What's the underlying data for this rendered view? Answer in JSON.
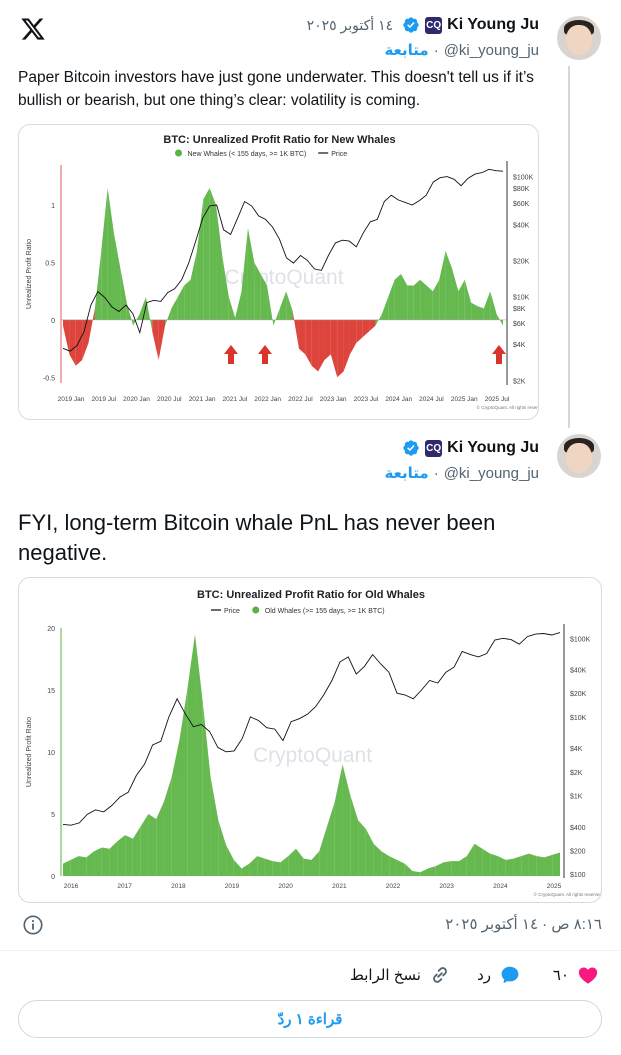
{
  "tweet1": {
    "name": "Ki Young Ju",
    "handle": "@ki_young_ju",
    "follow": "متابعة",
    "date": "١٤ أكتوبر ٢٠٢٥",
    "dot": "·",
    "text": "Paper Bitcoin investors have just gone underwater. This doesn't tell us if it’s bullish or bearish, but one thing’s clear: volatility is coming."
  },
  "tweet2": {
    "name": "Ki Young Ju",
    "handle": "@ki_young_ju",
    "follow": "متابعة",
    "dot": "·",
    "text": "FYI, long-term Bitcoin whale PnL has never been negative."
  },
  "badge_label": "CQ",
  "meta": {
    "timestamp": "٨:١٦ ص · ١٤ أكتوبر ٢٠٢٥"
  },
  "actions": {
    "like_count": "٦٠",
    "reply_label": "رد",
    "copy_link_label": "نسخ الرابط"
  },
  "read_replies_label": "قراءة ١ ردّ",
  "colors": {
    "accent": "#1d9bf0",
    "like": "#f91880",
    "green_series": "#59b340",
    "red_series": "#d9342b",
    "price_line": "#111111"
  },
  "chart_data": [
    {
      "type": "area",
      "title": "BTC: Unrealized Profit Ratio for New Whales",
      "legend": [
        "New Whales (< 155 days, >= 1K BTC)",
        "Price"
      ],
      "ylabel": "Unrealized Profit Ratio",
      "watermark": "CryptoQuant",
      "footnote": "© CryptoQuant. All rights reserved",
      "x_ticks": [
        "2019 Jan",
        "2019 Jul",
        "2020 Jan",
        "2020 Jul",
        "2021 Jan",
        "2021 Jul",
        "2022 Jan",
        "2022 Jul",
        "2023 Jan",
        "2023 Jul",
        "2024 Jan",
        "2024 Jul",
        "2025 Jan",
        "2025 Jul"
      ],
      "y_ticks": [
        "1",
        "0.5",
        "0",
        "-0.5"
      ],
      "ylim": [
        -0.55,
        1.35
      ],
      "y2_ticks": [
        "$100K",
        "$80K",
        "$60K",
        "$40K",
        "$20K",
        "$10K",
        "$8K",
        "$6K",
        "$4K",
        "$2K"
      ],
      "ratio": [
        -0.05,
        -0.3,
        -0.4,
        -0.35,
        -0.2,
        0.1,
        0.6,
        1.15,
        0.75,
        0.45,
        0.15,
        -0.05,
        0.05,
        0.2,
        -0.1,
        -0.35,
        -0.05,
        0.1,
        0.2,
        0.3,
        0.35,
        0.6,
        1.05,
        1.15,
        1.0,
        0.55,
        0.2,
        0.02,
        0.25,
        0.8,
        0.5,
        0.4,
        0.3,
        -0.05,
        0.1,
        0.25,
        0.08,
        -0.25,
        -0.3,
        -0.4,
        -0.45,
        -0.35,
        -0.3,
        -0.5,
        -0.45,
        -0.3,
        -0.2,
        -0.15,
        -0.1,
        -0.05,
        0.05,
        0.2,
        0.35,
        0.4,
        0.3,
        0.3,
        0.35,
        0.3,
        0.25,
        0.35,
        0.6,
        0.45,
        0.25,
        0.35,
        0.15,
        0.12,
        0.1,
        0.25,
        0.05,
        -0.05
      ],
      "price": [
        3.7,
        3.5,
        3.9,
        5.1,
        8.5,
        11.0,
        9.8,
        8.2,
        7.5,
        8.5,
        7.2,
        5.0,
        8.9,
        9.3,
        9.1,
        10.8,
        11.6,
        13.8,
        19.0,
        29.0,
        45.0,
        57.0,
        58.0,
        36.0,
        33.0,
        45.0,
        62.0,
        57.0,
        47.0,
        44.0,
        38.0,
        30.0,
        21.0,
        19.0,
        22.0,
        20.0,
        17.0,
        16.5,
        22.0,
        28.0,
        29.5,
        29.0,
        26.0,
        34.0,
        42.0,
        44.0,
        62.0,
        70.0,
        64.0,
        61.0,
        58.0,
        63.0,
        70.0,
        90.0,
        98.0,
        100.0,
        95.0,
        84.0,
        97.0,
        105.0,
        108.0,
        115.0,
        112.0,
        111.0
      ]
    },
    {
      "type": "area",
      "title": "BTC: Unrealized Profit Ratio for Old Whales",
      "legend": [
        "Price",
        "Old Whales (>= 155 days, >= 1K BTC)"
      ],
      "ylabel": "Unrealized Profit Ratio",
      "watermark": "CryptoQuant",
      "footnote": "© CryptoQuant. All rights reserved",
      "x_ticks": [
        "2016",
        "2017",
        "2018",
        "2019",
        "2020",
        "2021",
        "2022",
        "2023",
        "2024",
        "2025"
      ],
      "y_ticks": [
        "20",
        "15",
        "10",
        "5",
        "0"
      ],
      "ylim": [
        0,
        20
      ],
      "y2_ticks": [
        "$100K",
        "$40K",
        "$20K",
        "$10K",
        "$4K",
        "$2K",
        "$1K",
        "$400",
        "$200",
        "$100"
      ],
      "ratio": [
        1.0,
        1.3,
        1.6,
        1.5,
        2.0,
        2.3,
        2.2,
        2.8,
        3.3,
        3.0,
        4.0,
        5.0,
        4.6,
        6.0,
        8.0,
        11.0,
        15.0,
        19.5,
        14.0,
        8.0,
        4.5,
        2.5,
        1.3,
        0.6,
        1.0,
        1.6,
        1.4,
        1.2,
        1.1,
        1.6,
        2.2,
        1.4,
        1.3,
        2.0,
        4.0,
        6.0,
        9.0,
        6.5,
        4.5,
        3.8,
        2.6,
        2.0,
        1.6,
        1.3,
        1.0,
        0.4,
        0.3,
        0.6,
        0.8,
        1.1,
        1.2,
        1.2,
        1.6,
        2.6,
        2.2,
        1.8,
        1.6,
        1.3,
        1.4,
        1.6,
        1.8,
        1.6,
        1.5,
        1.7,
        1.9
      ],
      "price": [
        0.43,
        0.42,
        0.45,
        0.58,
        0.66,
        0.62,
        0.75,
        0.96,
        1.1,
        1.8,
        2.5,
        4.4,
        4.9,
        10.0,
        17.0,
        11.0,
        7.5,
        8.0,
        6.5,
        4.1,
        3.6,
        3.7,
        5.3,
        10.0,
        9.0,
        7.3,
        7.0,
        5.0,
        8.7,
        9.5,
        10.8,
        13.5,
        19.0,
        29.0,
        50.0,
        58.0,
        35.0,
        44.0,
        62.0,
        47.0,
        37.0,
        20.0,
        19.0,
        17.0,
        22.0,
        29.0,
        27.0,
        37.0,
        43.0,
        68.0,
        62.0,
        58.0,
        64.0,
        95.0,
        100.0,
        96.0,
        84.0,
        105.0,
        113.0,
        115.0,
        110.0,
        118.0
      ]
    }
  ]
}
